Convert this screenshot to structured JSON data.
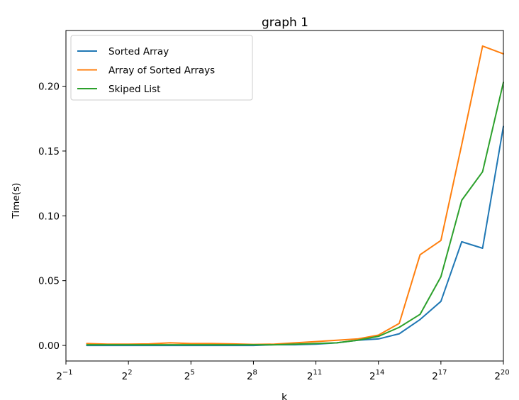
{
  "chart_data": {
    "type": "line",
    "title": "graph 1",
    "xlabel": "k",
    "ylabel": "Time(s)",
    "x_scale": "log2",
    "x": [
      1,
      2,
      4,
      8,
      16,
      32,
      64,
      128,
      256,
      512,
      1024,
      2048,
      4096,
      8192,
      16384,
      32768,
      65536,
      131072,
      262144,
      524288,
      1048576
    ],
    "xlim": [
      0.5,
      1048576
    ],
    "ylim": [
      -0.012,
      0.243
    ],
    "x_ticks": [
      {
        "value": 0.5,
        "base": "2",
        "exp": "−1"
      },
      {
        "value": 4,
        "base": "2",
        "exp": "2"
      },
      {
        "value": 32,
        "base": "2",
        "exp": "5"
      },
      {
        "value": 256,
        "base": "2",
        "exp": "8"
      },
      {
        "value": 2048,
        "base": "2",
        "exp": "11"
      },
      {
        "value": 16384,
        "base": "2",
        "exp": "14"
      },
      {
        "value": 131072,
        "base": "2",
        "exp": "17"
      },
      {
        "value": 1048576,
        "base": "2",
        "exp": "20"
      }
    ],
    "y_ticks": [
      {
        "value": 0.0,
        "label": "0.00"
      },
      {
        "value": 0.05,
        "label": "0.05"
      },
      {
        "value": 0.1,
        "label": "0.10"
      },
      {
        "value": 0.15,
        "label": "0.15"
      },
      {
        "value": 0.2,
        "label": "0.20"
      }
    ],
    "grid": false,
    "legend_position": "upper-left",
    "series": [
      {
        "name": "Sorted Array",
        "color": "#1f77b4",
        "values": [
          0.0,
          0.0,
          0.0,
          0.0,
          0.0,
          0.0,
          0.0,
          0.0,
          0.0,
          0.0005,
          0.0005,
          0.001,
          0.002,
          0.004,
          0.005,
          0.009,
          0.02,
          0.034,
          0.08,
          0.075,
          0.169
        ]
      },
      {
        "name": "Array of Sorted Arrays",
        "color": "#ff7f0e",
        "values": [
          0.0015,
          0.001,
          0.001,
          0.0012,
          0.002,
          0.0015,
          0.0015,
          0.0012,
          0.0008,
          0.001,
          0.002,
          0.003,
          0.004,
          0.005,
          0.008,
          0.017,
          0.07,
          0.081,
          0.155,
          0.231,
          0.225
        ]
      },
      {
        "name": "Skiped List",
        "color": "#2ca02c",
        "values": [
          0.0005,
          0.0005,
          0.0005,
          0.0005,
          0.0005,
          0.0005,
          0.0005,
          0.0005,
          0.0005,
          0.0005,
          0.001,
          0.0015,
          0.002,
          0.004,
          0.007,
          0.014,
          0.024,
          0.053,
          0.112,
          0.134,
          0.203
        ]
      }
    ]
  }
}
